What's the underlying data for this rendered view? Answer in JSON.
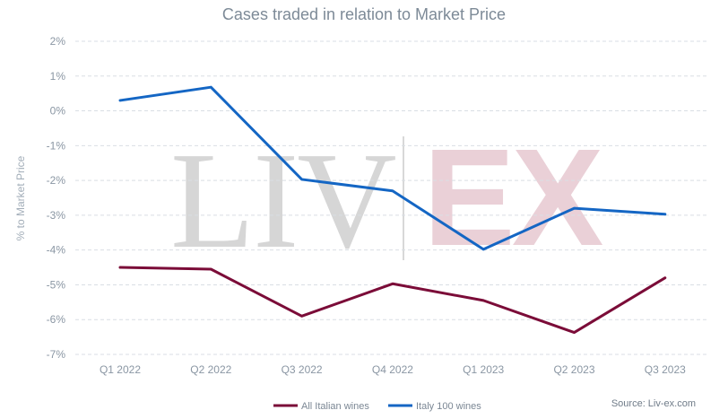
{
  "chart_data": {
    "type": "line",
    "title": "Cases traded in relation to Market Price",
    "ylabel": "% to Market Price",
    "xlabel": "",
    "categories": [
      "Q1 2022",
      "Q2 2022",
      "Q3 2022",
      "Q4 2022",
      "Q1 2023",
      "Q2 2023",
      "Q3 2023"
    ],
    "y_ticks": [
      "2%",
      "1%",
      "0%",
      "-1%",
      "-2%",
      "-3%",
      "-4%",
      "-5%",
      "-6%",
      "-7%"
    ],
    "ylim": [
      -7,
      2
    ],
    "grid": true,
    "legend_position": "bottom",
    "series": [
      {
        "name": "All Italian wines",
        "color": "#7b0c38",
        "values": [
          -4.5,
          -4.55,
          -5.9,
          -4.97,
          -5.45,
          -6.37,
          -4.8
        ]
      },
      {
        "name": "Italy 100 wines",
        "color": "#1466c4",
        "values": [
          0.3,
          0.68,
          -1.97,
          -2.3,
          -3.98,
          -2.8,
          -2.97
        ]
      }
    ],
    "source": "Source: Liv-ex.com",
    "watermark": {
      "left": "LIV",
      "right": "EX",
      "left_color": "#d6d6d6",
      "right_color": "#ead0d7"
    }
  }
}
